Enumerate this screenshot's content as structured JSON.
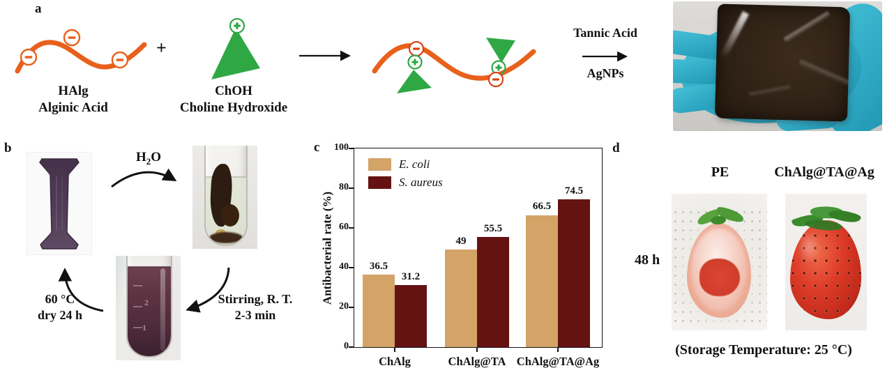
{
  "figure": {
    "panel_a": {
      "label": "a",
      "reactant1_name": "HAlg",
      "reactant1_fullname": "Alginic Acid",
      "plus": "+",
      "reactant2_name": "ChOH",
      "reactant2_fullname": "Choline Hydroxide",
      "arrow2_label_top": "Tannic Acid",
      "arrow2_label_bottom": "AgNPs"
    },
    "panel_b": {
      "label": "b",
      "h2o": {
        "h": "H",
        "sub": "2",
        "o": "O"
      },
      "stir_line1": "Stirring, R. T.",
      "stir_line2": "2-3 min",
      "dry_line1": "60 °C",
      "dry_line2": "dry 24 h",
      "tube_graduation_upper": "2",
      "tube_graduation_lower": "1"
    },
    "panel_c": {
      "label": "c"
    },
    "panel_d": {
      "label": "d",
      "column1": "PE",
      "column2": "ChAlg@TA@Ag",
      "time_label": "48 h",
      "caption": "(Storage Temperature: 25 °C)"
    }
  },
  "chart_data": {
    "type": "bar",
    "title": "",
    "categories": [
      "ChAlg",
      "ChAlg@TA",
      "ChAlg@TA@Ag"
    ],
    "series": [
      {
        "name": "E. coli",
        "color": "#D3A367",
        "values": [
          36.5,
          49,
          66.5
        ]
      },
      {
        "name": "S. aureus",
        "color": "#641312",
        "values": [
          31.2,
          55.5,
          74.5
        ]
      }
    ],
    "xlabel": "",
    "ylabel": "Antibacterial rate (%)",
    "ylim": [
      0,
      100
    ],
    "y_ticks": [
      0,
      20,
      40,
      60,
      80,
      100
    ],
    "legend_position": "top-left",
    "grid": false,
    "bar_value_labels": true
  },
  "icons": {
    "minus_charge": "−",
    "plus_charge": "+"
  },
  "colors": {
    "polymer_orange": "#E8611C",
    "choline_green": "#2FA844",
    "ecoli_tan": "#D3A367",
    "saureus_maroon": "#641312",
    "glove_teal": "#35B4CD",
    "film_brown": "#2A1D12"
  }
}
